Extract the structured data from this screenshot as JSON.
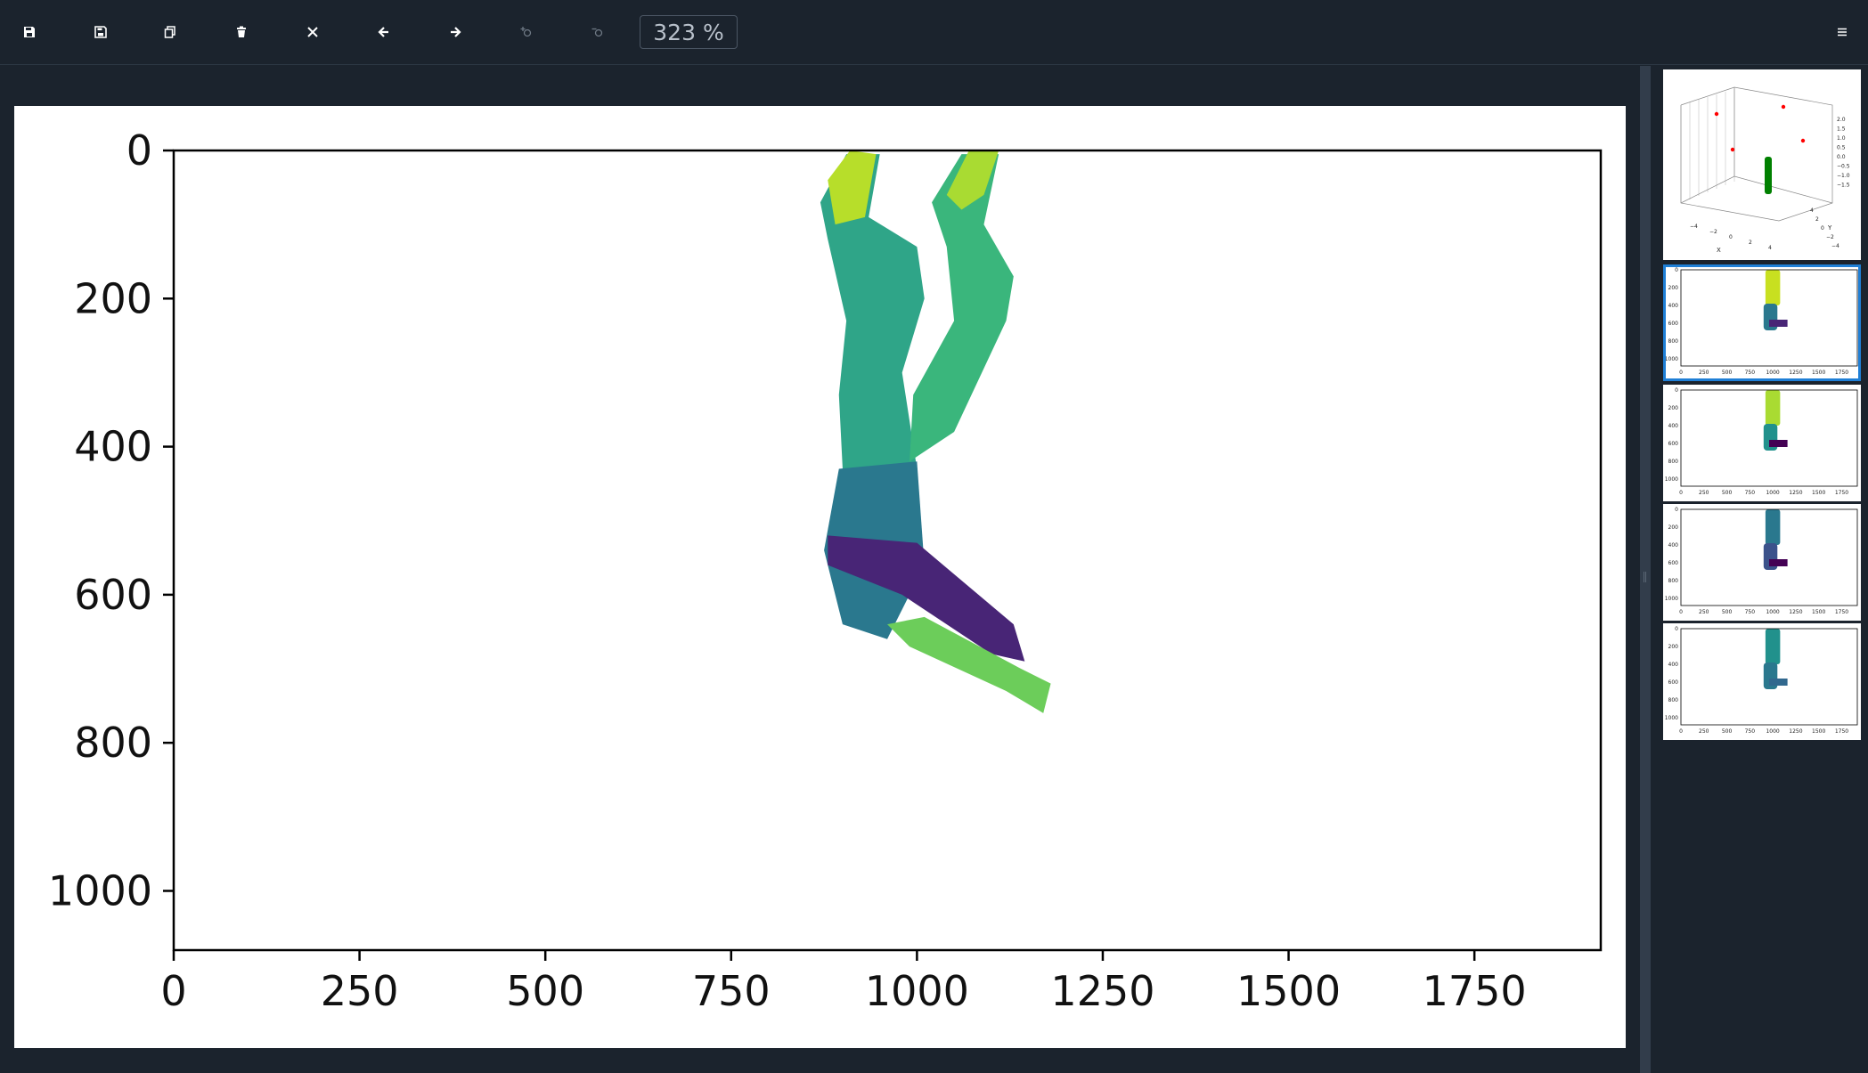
{
  "toolbar": {
    "buttons": [
      {
        "name": "save-icon",
        "title": "Save"
      },
      {
        "name": "save-as-icon",
        "title": "Save as"
      },
      {
        "name": "copy-icon",
        "title": "Copy"
      },
      {
        "name": "delete-icon",
        "title": "Delete"
      },
      {
        "name": "close-icon",
        "title": "Close"
      },
      {
        "name": "arrow-left-icon",
        "title": "Previous"
      },
      {
        "name": "arrow-right-icon",
        "title": "Next"
      },
      {
        "name": "zoom-in-icon",
        "title": "Zoom in"
      },
      {
        "name": "zoom-out-icon",
        "title": "Zoom out"
      }
    ],
    "zoom_label": "323 %",
    "menu_icon": "hamburger-menu-icon"
  },
  "chart_data": {
    "type": "image",
    "title": "",
    "xlabel": "",
    "ylabel": "",
    "xlim": [
      0,
      1920
    ],
    "ylim": [
      1080,
      0
    ],
    "x_ticks": [
      "0",
      "250",
      "500",
      "750",
      "1000",
      "1250",
      "1500",
      "1750"
    ],
    "x_tick_values": [
      0,
      250,
      500,
      750,
      1000,
      1250,
      1500,
      1750
    ],
    "y_ticks": [
      "0",
      "200",
      "400",
      "600",
      "800",
      "1000"
    ],
    "y_tick_values": [
      0,
      200,
      400,
      600,
      800,
      1000
    ],
    "colormap": "viridis"
  },
  "sidebar": {
    "thumbnails": [
      {
        "name": "thumbnail-3d-scatter",
        "selected": false
      },
      {
        "name": "thumbnail-figure-1",
        "selected": true
      },
      {
        "name": "thumbnail-figure-2",
        "selected": false
      },
      {
        "name": "thumbnail-figure-3",
        "selected": false
      },
      {
        "name": "thumbnail-figure-4",
        "selected": false
      }
    ],
    "thumb_x_ticks": [
      "0",
      "250",
      "500",
      "750",
      "1000",
      "1250",
      "1500",
      "1750"
    ],
    "thumb_y_ticks": [
      "0",
      "200",
      "400",
      "600",
      "800",
      "1000"
    ],
    "scatter3d": {
      "z_ticks": [
        "2.0",
        "1.5",
        "1.0",
        "0.5",
        "0.0",
        "−0.5",
        "−1.0",
        "−1.5"
      ],
      "x_ticks": [
        "−4",
        "−2",
        "0",
        "2",
        "4"
      ],
      "y_ticks": [
        "4",
        "2",
        "0",
        "−2",
        "−4"
      ],
      "xlabel": "X",
      "ylabel": "Y"
    }
  },
  "colors": {
    "background": "#1b232d",
    "accent": "#1f7fd6",
    "plot_points": "#ff0000",
    "body_points": "#008000"
  }
}
